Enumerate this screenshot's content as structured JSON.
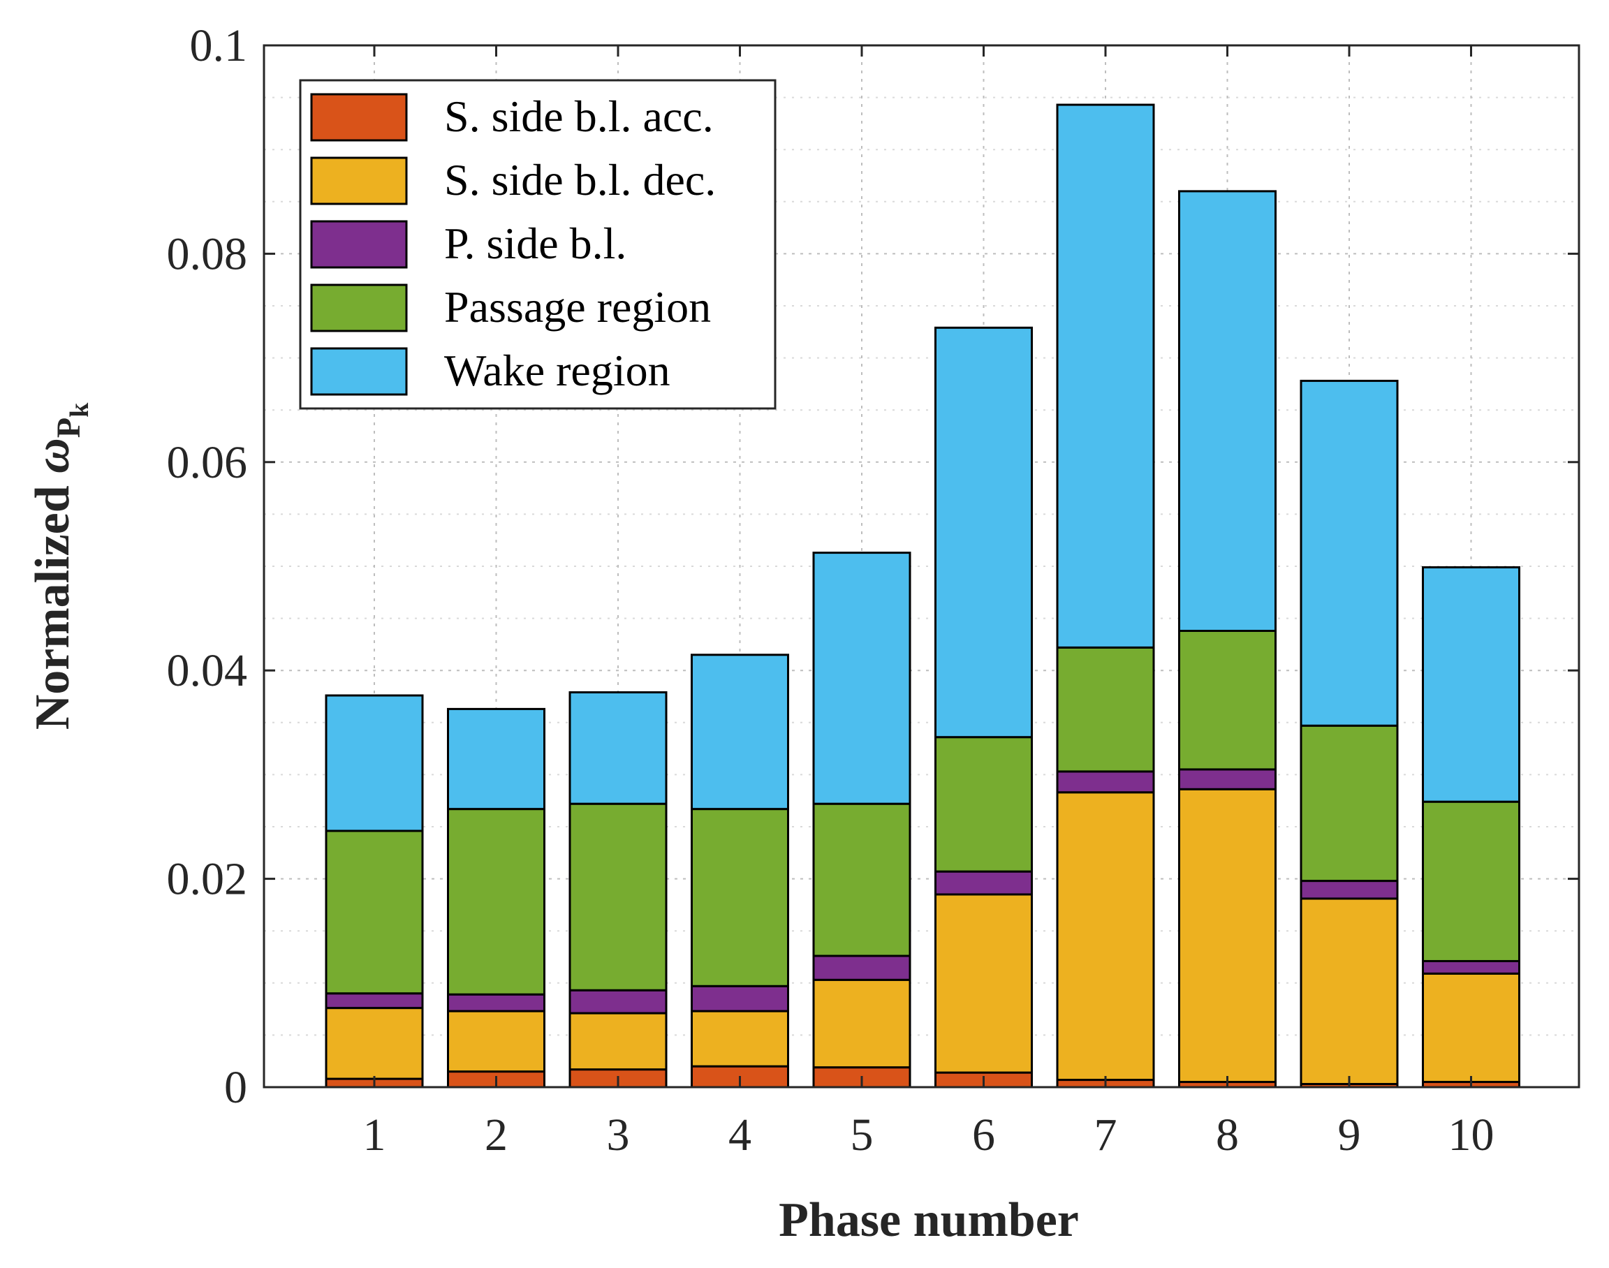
{
  "chart_data": {
    "type": "bar",
    "stacked": true,
    "categories": [
      "1",
      "2",
      "3",
      "4",
      "5",
      "6",
      "7",
      "8",
      "9",
      "10"
    ],
    "series": [
      {
        "name": "S. side b.l. acc.",
        "color": "#D95319",
        "values": [
          0.0008,
          0.0015,
          0.0017,
          0.002,
          0.0019,
          0.0014,
          0.0007,
          0.0005,
          0.0003,
          0.0005
        ]
      },
      {
        "name": "S. side b.l. dec.",
        "color": "#EDB120",
        "values": [
          0.0068,
          0.0058,
          0.0054,
          0.0053,
          0.0084,
          0.0171,
          0.0276,
          0.0281,
          0.0178,
          0.0104
        ]
      },
      {
        "name": "P. side b.l.",
        "color": "#7E2F8E",
        "values": [
          0.0014,
          0.0016,
          0.0022,
          0.0024,
          0.0023,
          0.0022,
          0.002,
          0.0019,
          0.0017,
          0.0012
        ]
      },
      {
        "name": "Passage region",
        "color": "#77AC30",
        "values": [
          0.0156,
          0.0178,
          0.0179,
          0.017,
          0.0146,
          0.0129,
          0.0119,
          0.0133,
          0.0149,
          0.0153
        ]
      },
      {
        "name": "Wake region",
        "color": "#4DBEEE",
        "values": [
          0.013,
          0.0096,
          0.0107,
          0.0148,
          0.0241,
          0.0393,
          0.0521,
          0.0422,
          0.0331,
          0.0225
        ]
      }
    ],
    "xlabel": "Phase number",
    "ylabel": "Normalized ωPk",
    "ylabel_parts": {
      "prefix": "Normalized ",
      "symbol": "ω",
      "sub": "P",
      "subsub": "k"
    },
    "ylim": [
      0,
      0.1
    ],
    "yticks": [
      0,
      0.02,
      0.04,
      0.06,
      0.08,
      0.1
    ],
    "ytick_labels": [
      "0",
      "0.02",
      "0.04",
      "0.06",
      "0.08",
      "0.1"
    ],
    "grid": true,
    "minor_grid": true,
    "legend_position": "top-left"
  }
}
